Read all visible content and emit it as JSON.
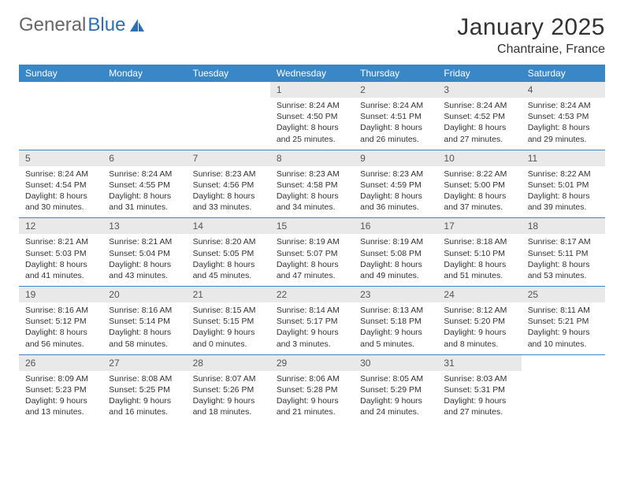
{
  "logo": {
    "part1": "General",
    "part2": "Blue"
  },
  "title": "January 2025",
  "location": "Chantraine, France",
  "headers": [
    "Sunday",
    "Monday",
    "Tuesday",
    "Wednesday",
    "Thursday",
    "Friday",
    "Saturday"
  ],
  "colors": {
    "header_bg": "#3a87c7",
    "daynum_bg": "#e9e9e9",
    "border": "#3a87c7",
    "logo_blue": "#2c6fb5"
  },
  "weeks": [
    [
      {
        "n": "",
        "sr": "",
        "ss": "",
        "dl": ""
      },
      {
        "n": "",
        "sr": "",
        "ss": "",
        "dl": ""
      },
      {
        "n": "",
        "sr": "",
        "ss": "",
        "dl": ""
      },
      {
        "n": "1",
        "sr": "8:24 AM",
        "ss": "4:50 PM",
        "dl": "8 hours and 25 minutes."
      },
      {
        "n": "2",
        "sr": "8:24 AM",
        "ss": "4:51 PM",
        "dl": "8 hours and 26 minutes."
      },
      {
        "n": "3",
        "sr": "8:24 AM",
        "ss": "4:52 PM",
        "dl": "8 hours and 27 minutes."
      },
      {
        "n": "4",
        "sr": "8:24 AM",
        "ss": "4:53 PM",
        "dl": "8 hours and 29 minutes."
      }
    ],
    [
      {
        "n": "5",
        "sr": "8:24 AM",
        "ss": "4:54 PM",
        "dl": "8 hours and 30 minutes."
      },
      {
        "n": "6",
        "sr": "8:24 AM",
        "ss": "4:55 PM",
        "dl": "8 hours and 31 minutes."
      },
      {
        "n": "7",
        "sr": "8:23 AM",
        "ss": "4:56 PM",
        "dl": "8 hours and 33 minutes."
      },
      {
        "n": "8",
        "sr": "8:23 AM",
        "ss": "4:58 PM",
        "dl": "8 hours and 34 minutes."
      },
      {
        "n": "9",
        "sr": "8:23 AM",
        "ss": "4:59 PM",
        "dl": "8 hours and 36 minutes."
      },
      {
        "n": "10",
        "sr": "8:22 AM",
        "ss": "5:00 PM",
        "dl": "8 hours and 37 minutes."
      },
      {
        "n": "11",
        "sr": "8:22 AM",
        "ss": "5:01 PM",
        "dl": "8 hours and 39 minutes."
      }
    ],
    [
      {
        "n": "12",
        "sr": "8:21 AM",
        "ss": "5:03 PM",
        "dl": "8 hours and 41 minutes."
      },
      {
        "n": "13",
        "sr": "8:21 AM",
        "ss": "5:04 PM",
        "dl": "8 hours and 43 minutes."
      },
      {
        "n": "14",
        "sr": "8:20 AM",
        "ss": "5:05 PM",
        "dl": "8 hours and 45 minutes."
      },
      {
        "n": "15",
        "sr": "8:19 AM",
        "ss": "5:07 PM",
        "dl": "8 hours and 47 minutes."
      },
      {
        "n": "16",
        "sr": "8:19 AM",
        "ss": "5:08 PM",
        "dl": "8 hours and 49 minutes."
      },
      {
        "n": "17",
        "sr": "8:18 AM",
        "ss": "5:10 PM",
        "dl": "8 hours and 51 minutes."
      },
      {
        "n": "18",
        "sr": "8:17 AM",
        "ss": "5:11 PM",
        "dl": "8 hours and 53 minutes."
      }
    ],
    [
      {
        "n": "19",
        "sr": "8:16 AM",
        "ss": "5:12 PM",
        "dl": "8 hours and 56 minutes."
      },
      {
        "n": "20",
        "sr": "8:16 AM",
        "ss": "5:14 PM",
        "dl": "8 hours and 58 minutes."
      },
      {
        "n": "21",
        "sr": "8:15 AM",
        "ss": "5:15 PM",
        "dl": "9 hours and 0 minutes."
      },
      {
        "n": "22",
        "sr": "8:14 AM",
        "ss": "5:17 PM",
        "dl": "9 hours and 3 minutes."
      },
      {
        "n": "23",
        "sr": "8:13 AM",
        "ss": "5:18 PM",
        "dl": "9 hours and 5 minutes."
      },
      {
        "n": "24",
        "sr": "8:12 AM",
        "ss": "5:20 PM",
        "dl": "9 hours and 8 minutes."
      },
      {
        "n": "25",
        "sr": "8:11 AM",
        "ss": "5:21 PM",
        "dl": "9 hours and 10 minutes."
      }
    ],
    [
      {
        "n": "26",
        "sr": "8:09 AM",
        "ss": "5:23 PM",
        "dl": "9 hours and 13 minutes."
      },
      {
        "n": "27",
        "sr": "8:08 AM",
        "ss": "5:25 PM",
        "dl": "9 hours and 16 minutes."
      },
      {
        "n": "28",
        "sr": "8:07 AM",
        "ss": "5:26 PM",
        "dl": "9 hours and 18 minutes."
      },
      {
        "n": "29",
        "sr": "8:06 AM",
        "ss": "5:28 PM",
        "dl": "9 hours and 21 minutes."
      },
      {
        "n": "30",
        "sr": "8:05 AM",
        "ss": "5:29 PM",
        "dl": "9 hours and 24 minutes."
      },
      {
        "n": "31",
        "sr": "8:03 AM",
        "ss": "5:31 PM",
        "dl": "9 hours and 27 minutes."
      },
      {
        "n": "",
        "sr": "",
        "ss": "",
        "dl": ""
      }
    ]
  ]
}
